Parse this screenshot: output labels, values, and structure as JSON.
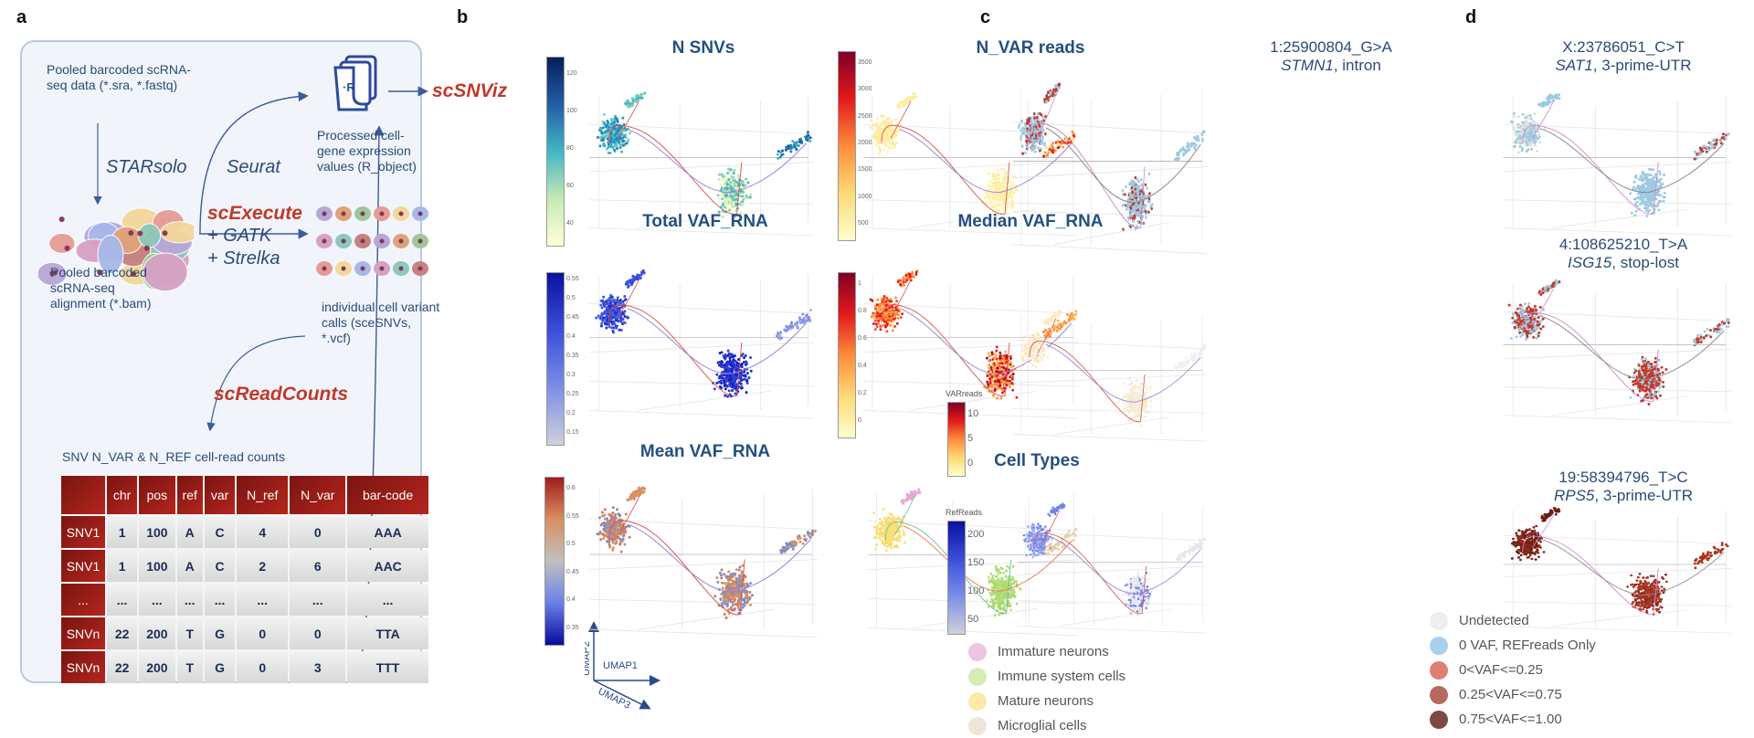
{
  "panel_labels": {
    "a": "a",
    "b": "b",
    "c": "c",
    "d": "d"
  },
  "panel_a": {
    "raw_data": "Pooled barcoded scRNA-seq data (*.sra, *.fastq)",
    "starsolo": "STARsolo",
    "seurat": "Seurat",
    "r_object": "Processed cell-gene expression values (R_object)",
    "r_icon_text": "·R",
    "scsnviz": "scSNViz",
    "alignment": "Pooled barcoded scRNA-seq alignment (*.bam)",
    "scexecute": "scExecute",
    "gatk": "+ GATK",
    "strelka": "+ Strelka",
    "variant_calls": "individual cell variant calls (sceSNVs, *.vcf)",
    "screadcounts": "scReadCounts",
    "table_title": "SNV N_VAR & N_REF cell-read counts",
    "table": {
      "headers": [
        "",
        "chr",
        "pos",
        "ref",
        "var",
        "N_ref",
        "N_var",
        "bar-code"
      ],
      "rows": [
        [
          "SNV1",
          "1",
          "100",
          "A",
          "C",
          "4",
          "0",
          "AAA"
        ],
        [
          "SNV1",
          "1",
          "100",
          "A",
          "C",
          "2",
          "6",
          "AAC"
        ],
        [
          "...",
          "...",
          "...",
          "...",
          "...",
          "...",
          "...",
          "..."
        ],
        [
          "SNVn",
          "22",
          "200",
          "T",
          "G",
          "0",
          "0",
          "TTA"
        ],
        [
          "SNVn",
          "22",
          "200",
          "T",
          "G",
          "0",
          "3",
          "TTT"
        ]
      ]
    }
  },
  "panel_b": {
    "plots": [
      {
        "id": "nsnvs",
        "title": "N SNVs",
        "colorbar": {
          "colors": [
            "#ffffd9",
            "#c7e9b4",
            "#41b6c4",
            "#225ea8",
            "#081d58"
          ],
          "ticks": [
            "120",
            "100",
            "80",
            "60",
            "40"
          ]
        },
        "palette": {
          "A": [
            "#41b6c4",
            "#2c7fb8",
            "#7fcdbb",
            "#1d91c0"
          ],
          "arm": [
            "#41b6c4",
            "#7fcdbb"
          ],
          "B": [
            "#c7e9b4",
            "#7fcdbb",
            "#41b6c4",
            "#edf8b1"
          ],
          "C": [
            "#2c7fb8",
            "#41b6c4",
            "#225ea8"
          ]
        }
      },
      {
        "id": "nvar",
        "title": "N_VAR reads",
        "colorbar": {
          "colors": [
            "#ffffcc",
            "#fed976",
            "#fd8d3c",
            "#e31a1c",
            "#800026"
          ],
          "ticks": [
            "3500",
            "3000",
            "2500",
            "2000",
            "1500",
            "1000",
            "500"
          ]
        },
        "palette": {
          "A": [
            "#fff3b0",
            "#ffeda0",
            "#fee8a0"
          ],
          "arm": [
            "#ffeda0"
          ],
          "B": [
            "#fff3b0",
            "#ffeda0"
          ],
          "C": [
            "#fed976",
            "#fd8d3c",
            "#e31a1c"
          ]
        }
      },
      {
        "id": "totalvaf",
        "title": "Total VAF_RNA",
        "colorbar": {
          "colors": [
            "#d0d0d8",
            "#7b8fe8",
            "#3a4fd9",
            "#0a10a0"
          ],
          "ticks": [
            "0.55",
            "0.5",
            "0.45",
            "0.4",
            "0.35",
            "0.3",
            "0.25",
            "0.2",
            "0.15"
          ]
        },
        "palette": {
          "A": [
            "#3a4fd9",
            "#4a60e0",
            "#2030c8"
          ],
          "arm": [
            "#3a4fd9"
          ],
          "B": [
            "#1020c0",
            "#2030c8",
            "#3040d0"
          ],
          "C": [
            "#8090e8",
            "#a0b0f0"
          ]
        }
      },
      {
        "id": "medianvaf",
        "title": "Median VAF_RNA",
        "colorbar": {
          "colors": [
            "#ffffcc",
            "#fed976",
            "#fd8d3c",
            "#e31a1c",
            "#800026"
          ],
          "ticks": [
            "1",
            "0.8",
            "0.6",
            "0.4",
            "0.2",
            "0"
          ]
        },
        "palette": {
          "A": [
            "#e31a1c",
            "#fd8d3c",
            "#fc4e2a",
            "#feb24c"
          ],
          "arm": [
            "#e31a1c",
            "#fd8d3c"
          ],
          "B": [
            "#fd8d3c",
            "#e31a1c",
            "#feb24c",
            "#b10026"
          ],
          "C": [
            "#fd8d3c",
            "#feb24c"
          ]
        }
      },
      {
        "id": "meanvaf",
        "title": "Mean VAF_RNA",
        "colorbar": {
          "colors": [
            "#0a0aa0",
            "#6a80e8",
            "#c0c0c0",
            "#d99060",
            "#a01c1c"
          ],
          "ticks": [
            "0.6",
            "0.55",
            "0.5",
            "0.45",
            "0.4",
            "0.35"
          ]
        },
        "palette": {
          "A": [
            "#d99060",
            "#c88060",
            "#7090e0"
          ],
          "arm": [
            "#d99060"
          ],
          "B": [
            "#d99060",
            "#7090e0",
            "#c88060"
          ],
          "C": [
            "#d99060",
            "#7090e0"
          ]
        }
      },
      {
        "id": "celltypes",
        "title": "Cell Types",
        "palette": {
          "A": [
            "#f7dc6f",
            "#f9e07a"
          ],
          "arm": [
            "#e8a6d8"
          ],
          "B": [
            "#a9d86e",
            "#b5e07a"
          ],
          "C": [
            "#e6cfa8"
          ]
        }
      }
    ],
    "celltype_legend": [
      {
        "label": "Immature neurons",
        "color": "#ecc6e4"
      },
      {
        "label": "Immune system cells",
        "color": "#d6ecb8"
      },
      {
        "label": "Mature neurons",
        "color": "#fbeaa8"
      },
      {
        "label": "Microglial cells",
        "color": "#efe6d8"
      }
    ],
    "axes": {
      "umap1": "UMAP1",
      "umap2": "UMAP2",
      "umap3": "UMAP3"
    }
  },
  "panel_c": {
    "title_variant": "1:25900804_G>A",
    "title_gene": "STMN1",
    "title_effect": ", intron",
    "varreads": {
      "label": "VARreads",
      "ticks": [
        "10",
        "5",
        "0"
      ],
      "colors": [
        "#ffffcc",
        "#fed976",
        "#fd8d3c",
        "#e31a1c",
        "#800026"
      ]
    },
    "refreads": {
      "label": "RefReads",
      "ticks": [
        "200",
        "150",
        "100",
        "50"
      ],
      "colors": [
        "#d0d0d8",
        "#7b8fe8",
        "#3a4fd9",
        "#0a10a0"
      ]
    },
    "palettes": [
      {
        "A": [
          "#9ecae1",
          "#9ecae1",
          "#c0392b"
        ],
        "arm": [
          "#9ecae1",
          "#c0392b"
        ],
        "B": [
          "#9ecae1",
          "#9ecae1",
          "#9ecae1",
          "#c0392b"
        ],
        "C": [
          "#9ecae1"
        ]
      },
      {
        "A": [
          "#fde9c0",
          "#fbe3b0",
          "#f5f5f5"
        ],
        "arm": [
          "#fde9c0"
        ],
        "B": [
          "#fde9c0",
          "#eeeeee"
        ],
        "C": [
          "#eeeeee"
        ]
      },
      {
        "A": [
          "#8a9cf0",
          "#a7b5f2",
          "#6f83ee"
        ],
        "arm": [
          "#6f83ee"
        ],
        "B": [
          "#e6e6ea",
          "#6f83ee",
          "#e6e6ea"
        ],
        "C": [
          "#e6e6ea"
        ]
      }
    ]
  },
  "panel_d": {
    "plots": [
      {
        "variant": "X:23786051_C>T",
        "gene": "SAT1",
        "effect": ", 3-prime-UTR",
        "palette": {
          "A": [
            "#9ecae1",
            "#dddddd"
          ],
          "arm": [
            "#9ecae1"
          ],
          "B": [
            "#9ecae1"
          ],
          "C": [
            "#9ecae1",
            "#c0392b"
          ]
        }
      },
      {
        "variant": "4:108625210_T>A",
        "gene": "ISG15",
        "effect": ", stop-lost",
        "palette": {
          "A": [
            "#9ecae1",
            "#c0392b"
          ],
          "arm": [
            "#9ecae1",
            "#c0392b"
          ],
          "B": [
            "#c0392b",
            "#c0392b",
            "#9ecae1"
          ],
          "C": [
            "#c0392b",
            "#9ecae1"
          ]
        }
      },
      {
        "variant": "19:58394796_T>C",
        "gene": "RPS5",
        "effect": ", 3-prime-UTR",
        "palette": {
          "A": [
            "#6e1c12",
            "#8a2a1c"
          ],
          "arm": [
            "#6e1c12"
          ],
          "B": [
            "#a8341f",
            "#8a2a1c",
            "#b03a28"
          ],
          "C": [
            "#a8341f"
          ]
        }
      }
    ],
    "legend": [
      {
        "label": "Undetected",
        "color": "#eeeeee"
      },
      {
        "label": "0 VAF, REFreads Only",
        "color": "#a9d1ee"
      },
      {
        "label": "0<VAF<=0.25",
        "color": "#de8070"
      },
      {
        "label": "0.25<VAF<=0.75",
        "color": "#b56a60"
      },
      {
        "label": "0.75<VAF<=1.00",
        "color": "#7d4a42"
      }
    ]
  }
}
